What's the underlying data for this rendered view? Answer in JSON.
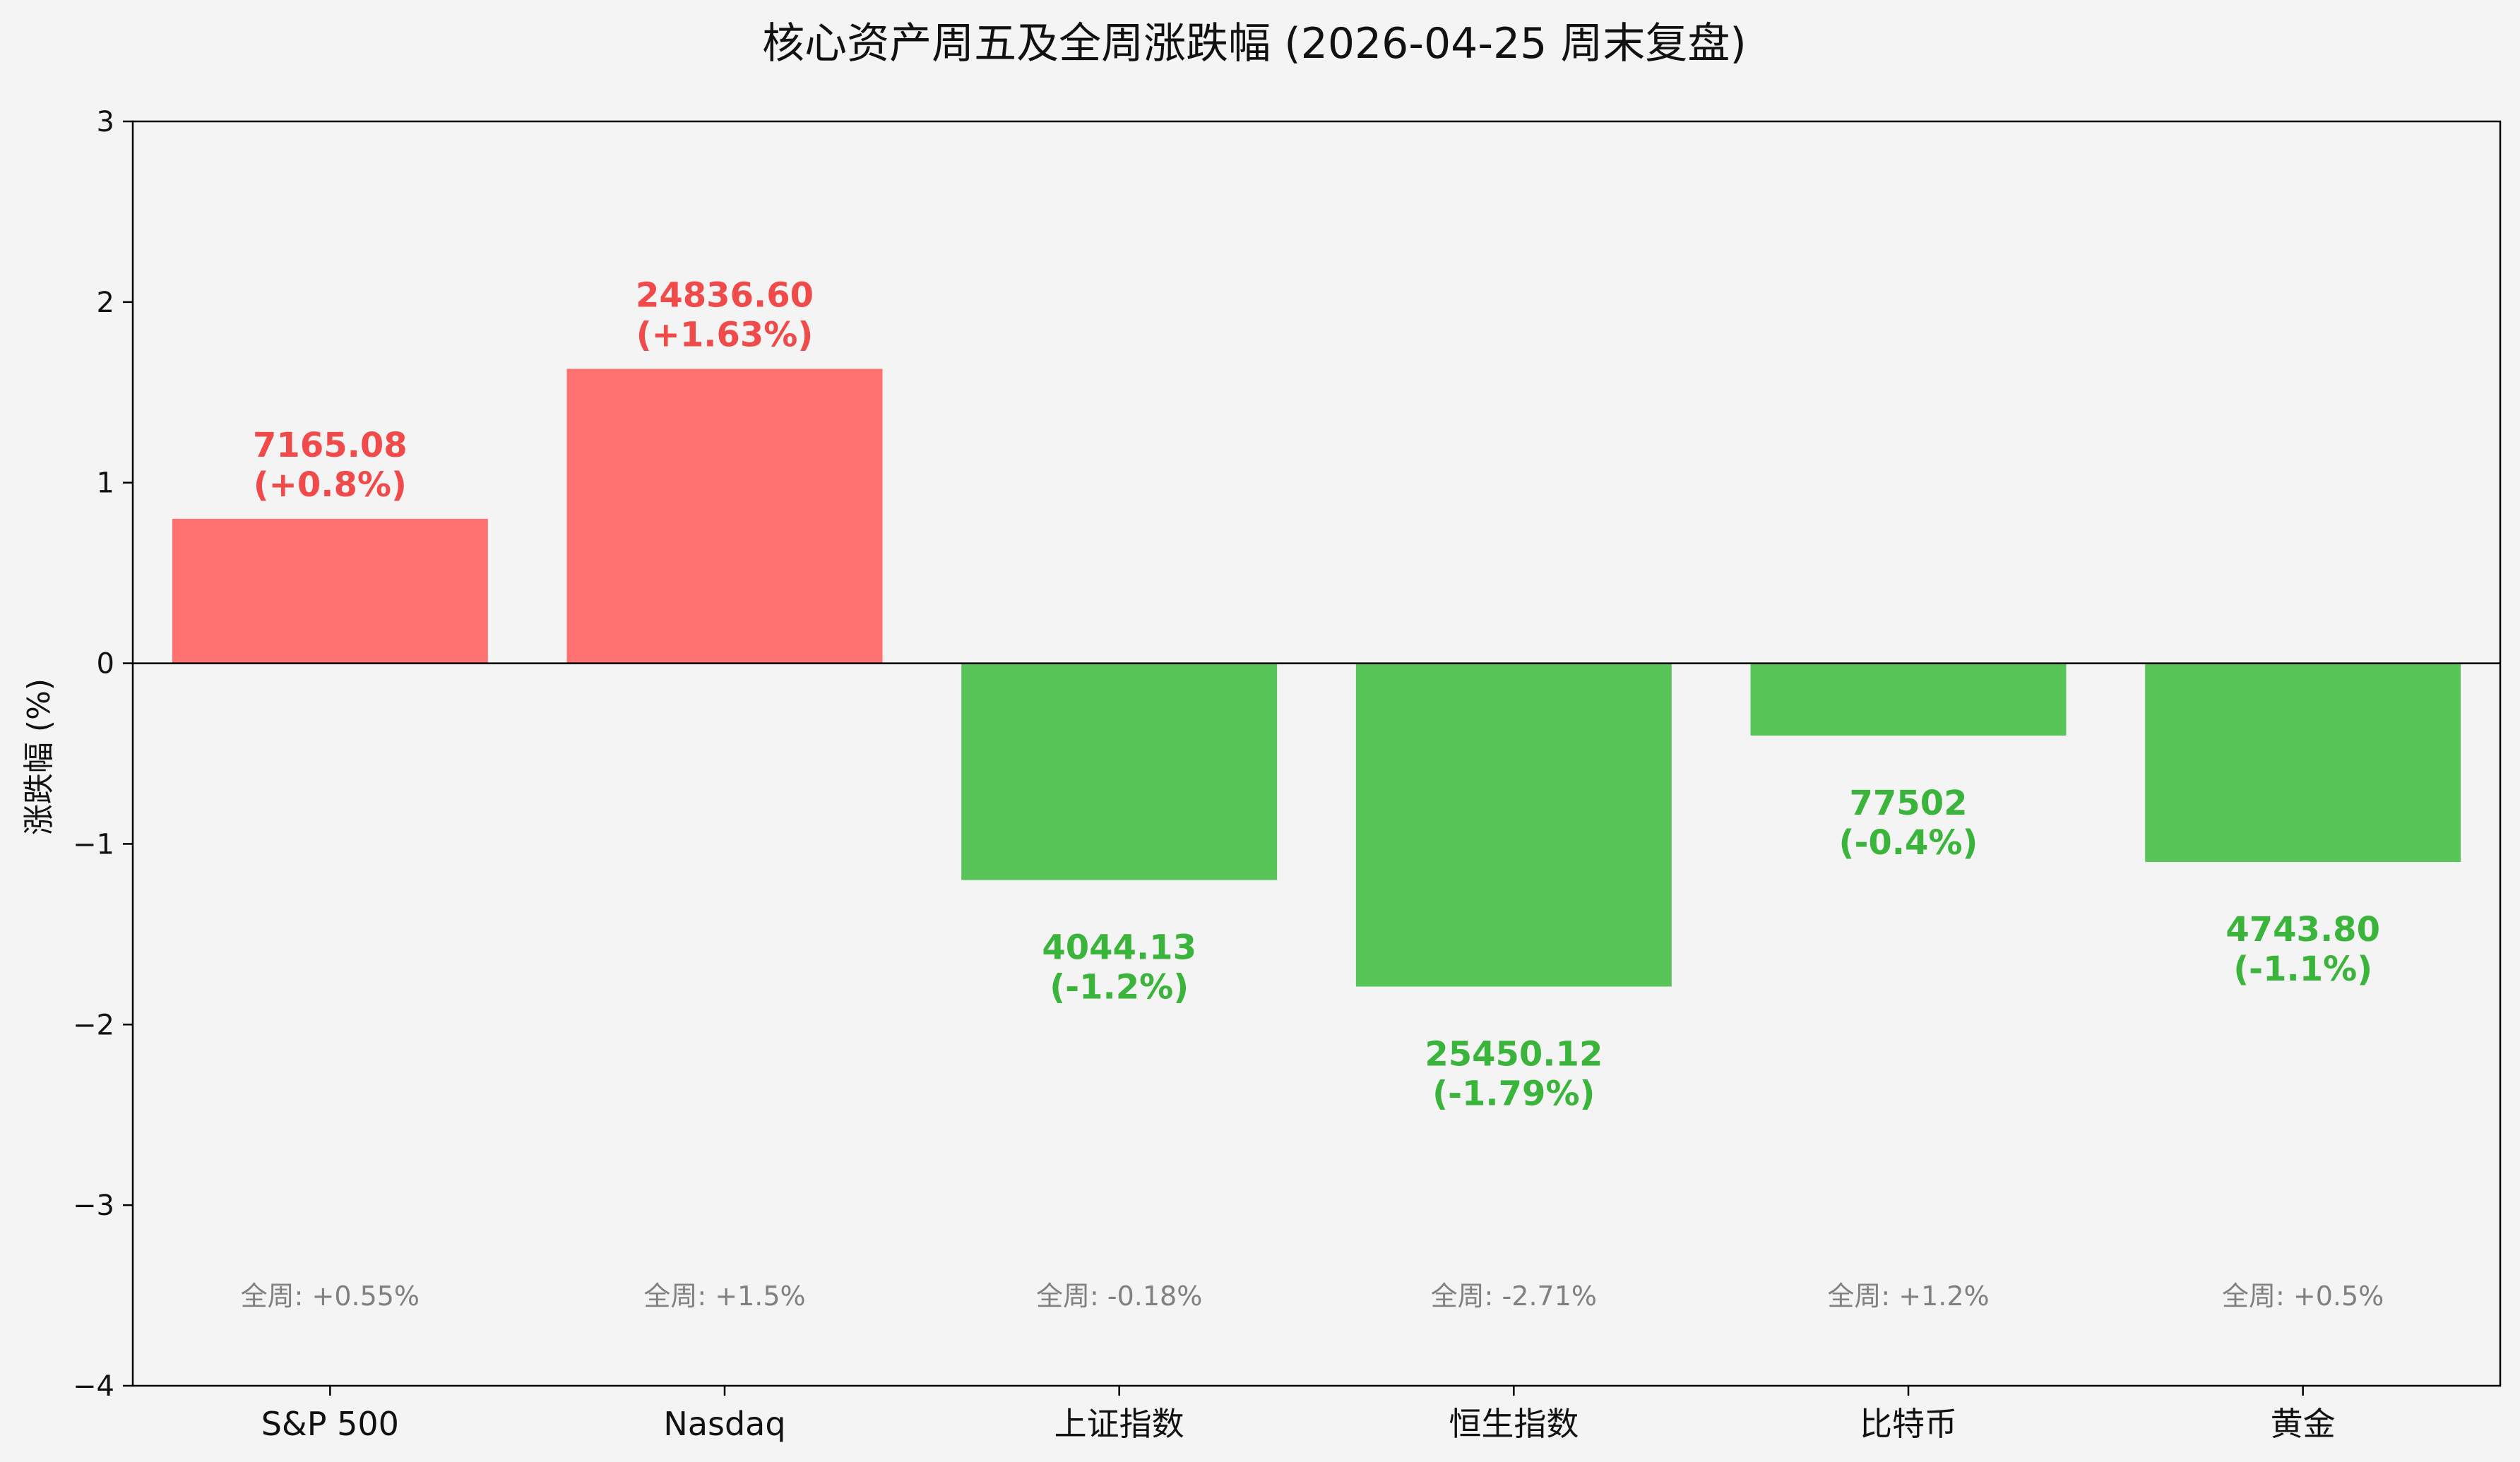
{
  "chart_data": {
    "type": "bar",
    "title": "核心资产周五及全周涨跌幅 (2026-04-25 周末复盘)",
    "xlabel": "",
    "ylabel": "涨跌幅 (%)",
    "ylim": [
      -4,
      3
    ],
    "yticks": [
      -4,
      -3,
      -2,
      -1,
      0,
      1,
      2,
      3
    ],
    "ytick_labels": [
      "−4",
      "−3",
      "−2",
      "−1",
      "0",
      "1",
      "2",
      "3"
    ],
    "categories": [
      "S&P 500",
      "Nasdaq",
      "上证指数",
      "恒生指数",
      "比特币",
      "黄金"
    ],
    "values": [
      0.8,
      1.63,
      -1.2,
      -1.79,
      -0.4,
      -1.1
    ],
    "value_labels": [
      "7165.08",
      "24836.60",
      "4044.13",
      "25450.12",
      "77502",
      "4743.80"
    ],
    "pct_labels": [
      "(+0.8%)",
      "(+1.63%)",
      "(-1.2%)",
      "(-1.79%)",
      "(-0.4%)",
      "(-1.1%)"
    ],
    "weekly_labels": [
      "全周: +0.55%",
      "全周: +1.5%",
      "全周: -0.18%",
      "全周: -2.71%",
      "全周: +1.2%",
      "全周: +0.5%"
    ],
    "weekly_y": -3.5,
    "grid": false,
    "colors": {
      "up_bar": "#ff7070",
      "down_bar": "#58c558",
      "up_text": "#f04a4a",
      "down_text": "#3ab43a",
      "weekly_text": "#808080",
      "axis": "#000000",
      "background": "#f4f4f4"
    }
  }
}
